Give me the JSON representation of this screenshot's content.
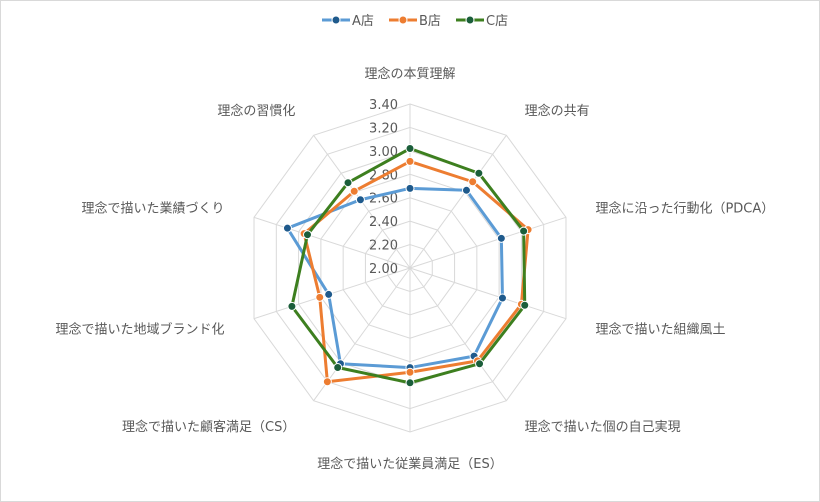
{
  "chart_data": {
    "type": "radar",
    "categories": [
      "理念の本質理解",
      "理念の共有",
      "理念に沿った行動化（PDCA）",
      "理念で描いた組織風土",
      "理念で描いた個の自己実現",
      "理念で描いた従業員満足（ES）",
      "理念で描いた顧客満足（CS）",
      "理念で描いた地域ブランド化",
      "理念で描いた業績づくり",
      "理念の習慣化"
    ],
    "rlim": [
      2.0,
      3.4
    ],
    "ticks": [
      "2.00",
      "2.20",
      "2.40",
      "2.60",
      "2.80",
      "3.00",
      "3.20",
      "3.40"
    ],
    "grid": true,
    "legend_position": "top",
    "series": [
      {
        "name": "A店",
        "color": "#5B9BD5",
        "marker": "#1F5A8C",
        "values": [
          2.68,
          2.82,
          2.82,
          2.83,
          2.93,
          2.85,
          3.01,
          2.73,
          3.1,
          2.72
        ]
      },
      {
        "name": "B店",
        "color": "#ED7D31",
        "marker": "#ED7D31",
        "values": [
          2.91,
          2.91,
          3.06,
          3.0,
          2.98,
          2.89,
          3.2,
          2.81,
          2.95,
          2.81
        ]
      },
      {
        "name": "C店",
        "color": "#3D7F1F",
        "marker": "#1B5E3A",
        "values": [
          3.02,
          3.0,
          3.02,
          3.03,
          3.01,
          2.98,
          3.05,
          3.06,
          2.92,
          2.9
        ]
      }
    ]
  }
}
